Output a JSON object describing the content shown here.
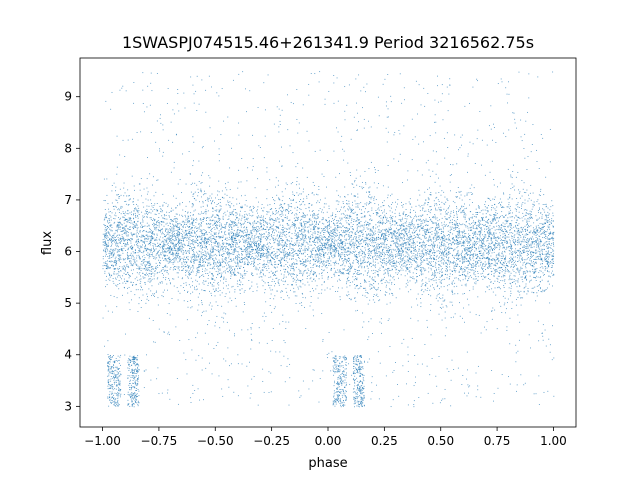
{
  "chart_data": {
    "type": "scatter",
    "title": "1SWASPJ074515.46+261341.9 Period 3216562.75s",
    "xlabel": "phase",
    "ylabel": "flux",
    "xlim": [
      -1.1,
      1.1
    ],
    "ylim": [
      2.6,
      9.75
    ],
    "xticks": [
      -1.0,
      -0.75,
      -0.5,
      -0.25,
      0.0,
      0.25,
      0.5,
      0.75,
      1.0
    ],
    "xtick_labels": [
      "−1.00",
      "−0.75",
      "−0.50",
      "−0.25",
      "0.00",
      "0.25",
      "0.50",
      "0.75",
      "1.00"
    ],
    "yticks": [
      3,
      4,
      5,
      6,
      7,
      8,
      9
    ],
    "ytick_labels": [
      "3",
      "4",
      "5",
      "6",
      "7",
      "8",
      "9"
    ],
    "grid": false,
    "point_color": "#1f77b4",
    "series": [
      {
        "baseline_flux": 6.15,
        "scatter_band": [
          5.4,
          7.0
        ],
        "outlier_range": [
          3.0,
          9.5
        ],
        "low_state_flux": [
          3.0,
          4.0
        ],
        "low_state_phases": [
          [
            -0.98,
            -0.92
          ],
          [
            -0.89,
            -0.84
          ],
          [
            0.02,
            0.08
          ],
          [
            0.11,
            0.16
          ]
        ],
        "x_range": [
          -1.0,
          1.0
        ]
      }
    ]
  }
}
